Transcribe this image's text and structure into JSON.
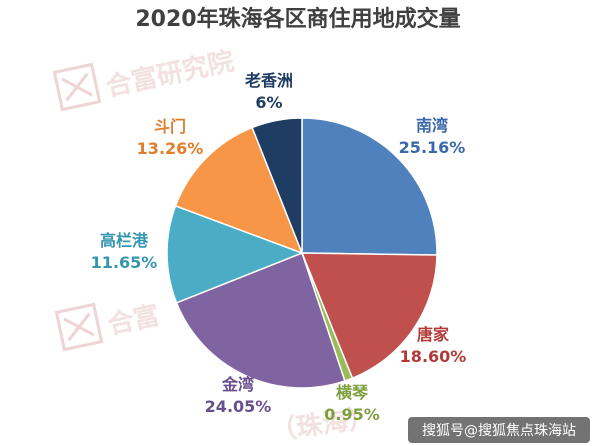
{
  "watermark": {
    "text_1": "合富研究院",
    "text_2": "合富",
    "text_3": "（珠海）"
  },
  "footer": {
    "text": "搜狐号@搜狐焦点珠海站"
  },
  "chart_data": {
    "type": "pie",
    "title": "2020年珠海各区商住用地成交量",
    "slices": [
      {
        "name": "南湾",
        "value": 25.16,
        "label": "25.16%",
        "color": "#4f81bd",
        "label_color": "#3a68a8"
      },
      {
        "name": "唐家",
        "value": 18.6,
        "label": "18.60%",
        "color": "#c0504d",
        "label_color": "#b23b38"
      },
      {
        "name": "横琴",
        "value": 0.95,
        "label": "0.95%",
        "color": "#9bbb59",
        "label_color": "#7f9f3f"
      },
      {
        "name": "金湾",
        "value": 24.05,
        "label": "24.05%",
        "color": "#8064a2",
        "label_color": "#6a4f8e"
      },
      {
        "name": "高栏港",
        "value": 11.65,
        "label": "11.65%",
        "color": "#4bacc6",
        "label_color": "#3596b0"
      },
      {
        "name": "斗门",
        "value": 13.26,
        "label": "13.26%",
        "color": "#f79646",
        "label_color": "#e07e2c"
      },
      {
        "name": "老香洲",
        "value": 6,
        "label": "6%",
        "color": "#1f3c63",
        "label_color": "#1f3c63"
      }
    ]
  }
}
